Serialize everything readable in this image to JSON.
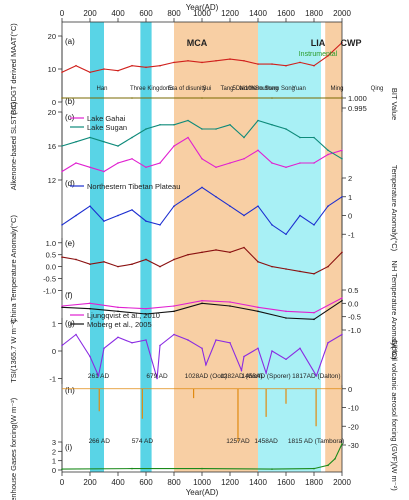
{
  "chart_data": {
    "type": "line",
    "x_axis": {
      "label": "Year(AD)",
      "range": [
        0,
        2000
      ],
      "ticks": [
        0,
        200,
        400,
        600,
        800,
        1000,
        1200,
        1400,
        1600,
        1800,
        2000
      ],
      "tick_labels": [
        "0",
        "200",
        "400",
        "600",
        "800",
        "1000",
        "1200",
        "1400",
        "1600",
        "1800",
        "2000"
      ]
    },
    "shading": {
      "orange": [
        [
          800,
          1400
        ],
        [
          1880,
          2000
        ]
      ],
      "cyan": [
        [
          200,
          300
        ],
        [
          560,
          640
        ],
        [
          1400,
          1850
        ]
      ],
      "colors": {
        "orange": "#f8cfa4",
        "cyan": "#a8f0f5",
        "dark_cyan": "#2fc9e0"
      }
    },
    "top_markers": {
      "periods": [
        "MCA",
        "LIA",
        "CWP"
      ],
      "instrumental_label": "Instrumental"
    },
    "panels": [
      {
        "id": "a",
        "label": "(a)",
        "ylabel": "BrGDGT derived MAAT(°C)",
        "ylim": [
          0,
          20
        ],
        "ticks": [
          0,
          10,
          20
        ],
        "dynasties": [
          "Han",
          "Three Kingdoms",
          "Era of disunity",
          "Sui",
          "Tang",
          "5Dai10K",
          "Northern Song",
          "Southern Song",
          "Yuan",
          "Ming",
          "Qing"
        ],
        "series": [
          {
            "name": "",
            "color": "#d0201c",
            "x": [
              0,
              100,
              200,
              300,
              400,
              500,
              600,
              700,
              800,
              900,
              1000,
              1100,
              1200,
              1300,
              1400,
              1500,
              1600,
              1700,
              1800,
              1900,
              2000
            ],
            "values": [
              9,
              11,
              9,
              10,
              9.5,
              11,
              10.5,
              11,
              12,
              12.5,
              12,
              12.5,
              13,
              12.5,
              11.5,
              11.5,
              11,
              12,
              11,
              14,
              18
            ]
          }
        ]
      },
      {
        "id": "b",
        "label": "(b)",
        "ylabel_right": "BIT Value",
        "ylim": [
          0.993,
          1.001
        ],
        "ticks": [
          0.995,
          1.0
        ],
        "tick_labels": [
          "0.995",
          "1.000"
        ],
        "series": [
          {
            "name": "",
            "color": "#7a6a00",
            "x": [
              0,
              500,
              1000,
              1500,
              2000
            ],
            "values": [
              1.0,
              1.0,
              1.0,
              1.0,
              1.0
            ]
          }
        ]
      },
      {
        "id": "c",
        "label": "(c)",
        "ylabel": "Alkenone-based SLST(°C)",
        "ylim": [
          12,
          20
        ],
        "ticks": [
          12,
          16,
          20
        ],
        "series": [
          {
            "name": "Lake Gahai",
            "color": "#e020d0",
            "x": [
              0,
              100,
              200,
              300,
              400,
              500,
              600,
              700,
              800,
              900,
              1000,
              1100,
              1200,
              1300,
              1400,
              1500,
              1600,
              1700,
              1800,
              1900,
              2000
            ],
            "values": [
              13,
              14,
              13.5,
              13,
              14,
              14.5,
              13.5,
              14,
              16,
              17,
              14.5,
              13.5,
              14,
              14.5,
              15.5,
              14,
              13.5,
              14,
              14,
              15,
              15.5
            ]
          },
          {
            "name": "Lake Sugan",
            "color": "#0e8a7a",
            "x": [
              0,
              100,
              200,
              300,
              400,
              500,
              600,
              700,
              800,
              900,
              1000,
              1100,
              1200,
              1300,
              1400,
              1500,
              1600,
              1700,
              1800,
              1900,
              2000
            ],
            "values": [
              16,
              16.5,
              17,
              16.5,
              16,
              17,
              18,
              18.5,
              18.5,
              19,
              18,
              18,
              18.5,
              17,
              19,
              18.5,
              18,
              17,
              17,
              15.5,
              14.5
            ]
          }
        ]
      },
      {
        "id": "d",
        "label": "(d)",
        "ylabel_right": "Temperature Anomaly(°C)",
        "ylim": [
          -1.2,
          2
        ],
        "ticks": [
          -1,
          0,
          1,
          2
        ],
        "legend": "Northestern Tibetan Plateau",
        "series": [
          {
            "name": "Northestern Tibetan Plateau",
            "color": "#1c2ed0",
            "x": [
              0,
              100,
              200,
              300,
              400,
              500,
              600,
              700,
              800,
              900,
              1000,
              1100,
              1200,
              1300,
              1400,
              1500,
              1600,
              1700,
              1800,
              1900,
              2000
            ],
            "values": [
              -0.5,
              0,
              0.5,
              -0.3,
              0,
              0.3,
              -0.3,
              -0.5,
              0.5,
              1.0,
              1.5,
              1.0,
              0.5,
              0.0,
              0.5,
              -0.5,
              -1.0,
              0.0,
              -0.5,
              0.5,
              1.0
            ]
          }
        ]
      },
      {
        "id": "e",
        "label": "(e)",
        "ylabel": "China Temperature Anomaly(°C)",
        "ylim": [
          -1.4,
          1.2
        ],
        "ticks": [
          -1.0,
          -0.5,
          0.0,
          0.5,
          1.0
        ],
        "tick_labels": [
          "-1.0",
          "-0.5",
          "0.0",
          "0.5",
          "1.0"
        ],
        "series": [
          {
            "name": "",
            "color": "#8a1010",
            "x": [
              0,
              100,
              200,
              300,
              400,
              500,
              600,
              700,
              800,
              900,
              1000,
              1100,
              1200,
              1300,
              1400,
              1500,
              1600,
              1700,
              1800,
              1900,
              2000
            ],
            "values": [
              0.4,
              0.3,
              0.1,
              0.2,
              0.0,
              0.1,
              0.3,
              0.0,
              0.3,
              0.5,
              0.6,
              0.7,
              0.6,
              0.8,
              0.2,
              0.0,
              -0.1,
              -0.2,
              -0.3,
              0.0,
              0.6
            ]
          }
        ]
      },
      {
        "id": "f",
        "label": "(f)",
        "ylabel_right": "NH Temperature Anomaly(°C)",
        "ylim": [
          -1.0,
          0.5
        ],
        "ticks": [
          -1.0,
          -0.5,
          0.0,
          0.5
        ],
        "tick_labels": [
          "-1.0",
          "-0.5",
          "0.0",
          "0.5"
        ],
        "series": [
          {
            "name": "Ljungqvist et al., 2010",
            "color": "#e020d0",
            "x": [
              0,
              200,
              400,
              600,
              800,
              1000,
              1200,
              1400,
              1600,
              1800,
              2000
            ],
            "values": [
              -0.1,
              0.0,
              -0.15,
              -0.2,
              -0.1,
              0.1,
              0.05,
              -0.15,
              -0.3,
              -0.35,
              0.2
            ]
          },
          {
            "name": "Moberg et al., 2005",
            "color": "#111111",
            "x": [
              0,
              200,
              400,
              600,
              800,
              1000,
              1200,
              1400,
              1600,
              1800,
              2000
            ],
            "values": [
              -0.15,
              -0.2,
              -0.3,
              -0.4,
              -0.3,
              0.0,
              -0.1,
              -0.3,
              -0.55,
              -0.6,
              0.1
            ]
          }
        ]
      },
      {
        "id": "g",
        "label": "(g)",
        "ylabel": "TSI(1365.7 W m⁻²)",
        "ylim": [
          -1.2,
          1.2
        ],
        "ticks": [
          -1,
          0,
          1
        ],
        "annotations": [
          {
            "x": 261,
            "text": "261 AD"
          },
          {
            "x": 679,
            "text": "679 AD"
          },
          {
            "x": 1028,
            "text": "1028AD (Oort)"
          },
          {
            "x": 1282,
            "text": "1282AD (Wolf)"
          },
          {
            "x": 1458,
            "text": "1458AD (Sporer)"
          },
          {
            "x": 1817,
            "text": "1817AD (Dalton)"
          }
        ],
        "series": [
          {
            "name": "",
            "color": "#8a2be2",
            "x": [
              0,
              100,
              200,
              261,
              300,
              400,
              500,
              600,
              679,
              700,
              800,
              900,
              1000,
              1028,
              1100,
              1200,
              1282,
              1300,
              1400,
              1458,
              1500,
              1600,
              1700,
              1817,
              1900,
              2000
            ],
            "values": [
              0.2,
              0.6,
              -0.2,
              -0.9,
              0.1,
              0.5,
              0.3,
              0.4,
              -1.0,
              0.2,
              0.6,
              0.4,
              0.1,
              -0.5,
              0.4,
              0.3,
              -0.7,
              -0.2,
              0.1,
              -0.8,
              0.0,
              -0.3,
              0.1,
              -0.9,
              0.3,
              0.6
            ]
          }
        ]
      },
      {
        "id": "h",
        "label": "(h)",
        "ylabel_right": "Global volcanic aerosol forcing (GVF)(W m⁻²)",
        "ylim": [
          -30,
          2
        ],
        "ticks": [
          -30,
          -20,
          -10,
          0
        ],
        "annotations": [
          {
            "x": 266,
            "text": "266 AD"
          },
          {
            "x": 574,
            "text": "574 AD"
          },
          {
            "x": 1257,
            "text": "1257AD"
          },
          {
            "x": 1458,
            "text": "1458AD"
          },
          {
            "x": 1815,
            "text": "1815 AD (Tambora)"
          }
        ],
        "spikes": [
          {
            "x": 266,
            "value": -12
          },
          {
            "x": 574,
            "value": -16
          },
          {
            "x": 940,
            "value": -5
          },
          {
            "x": 1257,
            "value": -28
          },
          {
            "x": 1458,
            "value": -15
          },
          {
            "x": 1600,
            "value": -8
          },
          {
            "x": 1815,
            "value": -20
          }
        ],
        "series": [
          {
            "name": "",
            "color": "#e08a10"
          }
        ]
      },
      {
        "id": "i",
        "label": "(i)",
        "ylabel": "Greenhouse Gases forcing(W m⁻²)",
        "ylim": [
          0,
          3
        ],
        "ticks": [
          0,
          1,
          2,
          3
        ],
        "series": [
          {
            "name": "",
            "color": "#1a8a1a",
            "x": [
              0,
              500,
              1000,
              1500,
              1800,
              1900,
              1950,
              2000
            ],
            "values": [
              0.1,
              0.15,
              0.15,
              0.1,
              0.15,
              0.5,
              1.2,
              2.8
            ]
          }
        ]
      }
    ]
  }
}
